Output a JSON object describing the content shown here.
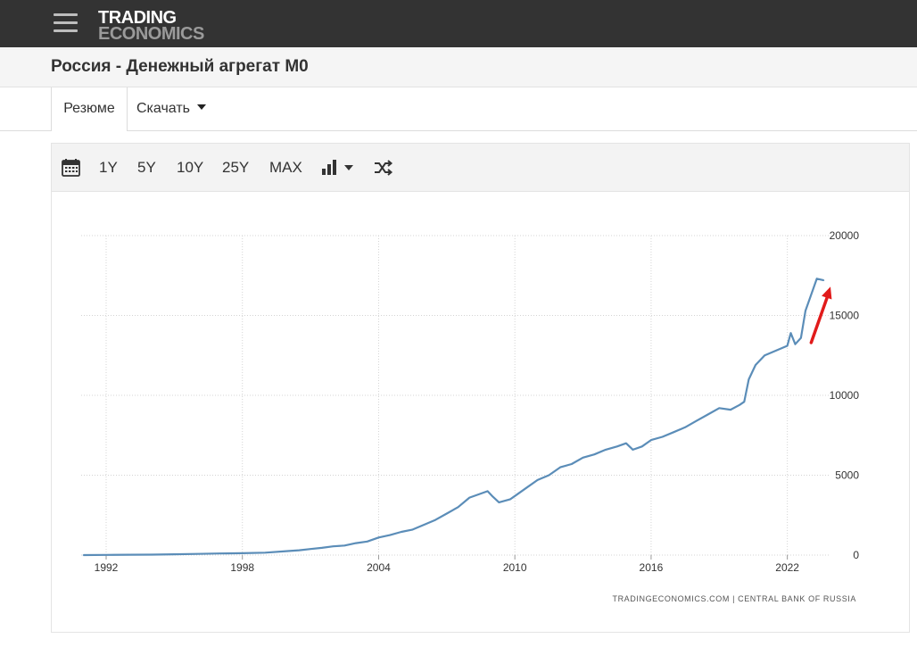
{
  "header": {
    "logo_line1": "TRADING",
    "logo_line2": "ECONOMICS",
    "menu_icon": "hamburger-menu-icon"
  },
  "page": {
    "title": "Россия - Денежный агрегат M0"
  },
  "tabs": {
    "summary_label": "Резюме",
    "download_label": "Скачать"
  },
  "toolbar": {
    "calendar_icon": "calendar-icon",
    "ranges": [
      "1Y",
      "5Y",
      "10Y",
      "25Y",
      "MAX"
    ],
    "chart_type_icon": "bar-chart-icon",
    "compare_icon": "shuffle-icon"
  },
  "colors": {
    "line": "#5b8db8",
    "annotation_arrow": "#e11b1b",
    "grid": "#d4d4d4"
  },
  "chart_data": {
    "type": "line",
    "title": "",
    "xlabel": "",
    "ylabel": "",
    "x_ticks": [
      "1992",
      "1998",
      "2004",
      "2010",
      "2016",
      "2022"
    ],
    "y_ticks": [
      "0",
      "5000",
      "10000",
      "15000",
      "20000"
    ],
    "ylim": [
      0,
      20000
    ],
    "xlim": [
      1990.9,
      2023.9
    ],
    "grid": true,
    "y_axis_position": "right",
    "source": "TRADINGECONOMICS.COM  |  CENTRAL BANK OF RUSSIA",
    "annotation": "red upward arrow near latest values",
    "series": [
      {
        "x": [
          1991.0,
          1992.0,
          1993.0,
          1994.0,
          1995.0,
          1996.0,
          1997.0,
          1998.0,
          1999.0,
          2000.0,
          2000.5,
          2001.0,
          2001.5,
          2002.0,
          2002.5,
          2003.0,
          2003.5,
          2004.0,
          2004.5,
          2005.0,
          2005.5,
          2006.0,
          2006.5,
          2007.0,
          2007.5,
          2008.0,
          2008.4,
          2008.8,
          2009.0,
          2009.3,
          2009.8,
          2010.0,
          2010.5,
          2011.0,
          2011.5,
          2012.0,
          2012.5,
          2013.0,
          2013.5,
          2014.0,
          2014.5,
          2014.9,
          2015.2,
          2015.6,
          2016.0,
          2016.5,
          2017.0,
          2017.5,
          2018.0,
          2018.5,
          2019.0,
          2019.5,
          2019.9,
          2020.1,
          2020.3,
          2020.6,
          2021.0,
          2021.5,
          2022.0,
          2022.15,
          2022.35,
          2022.6,
          2022.8,
          2023.0,
          2023.3,
          2023.6
        ],
        "values": [
          0,
          10,
          20,
          30,
          50,
          70,
          100,
          120,
          150,
          250,
          300,
          380,
          450,
          550,
          600,
          750,
          850,
          1100,
          1250,
          1450,
          1600,
          1900,
          2200,
          2600,
          3000,
          3600,
          3800,
          4000,
          3700,
          3300,
          3500,
          3700,
          4200,
          4700,
          5000,
          5500,
          5700,
          6100,
          6300,
          6600,
          6800,
          7000,
          6600,
          6800,
          7200,
          7400,
          7700,
          8000,
          8400,
          8800,
          9200,
          9100,
          9400,
          9600,
          11000,
          11900,
          12500,
          12800,
          13100,
          13900,
          13200,
          13600,
          15300,
          16100,
          17300,
          17200
        ]
      }
    ]
  }
}
